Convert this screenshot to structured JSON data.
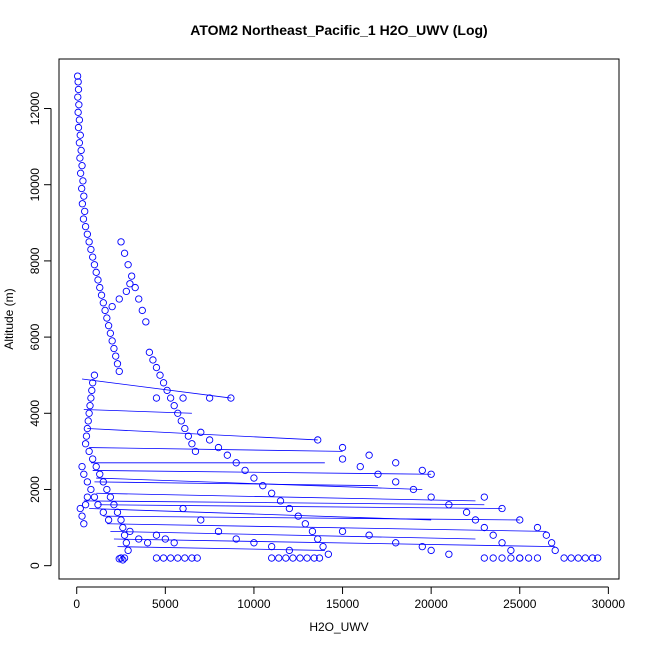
{
  "chart_data": {
    "type": "scatter",
    "title": "ATOM2 Northeast_Pacific_1 H2O_UWV (Log)",
    "xlabel": "H2O_UWV",
    "ylabel": "Altitude (m)",
    "xlim": [
      -1000,
      30600
    ],
    "ylim": [
      -350,
      13300
    ],
    "x_ticks": [
      0,
      5000,
      10000,
      15000,
      20000,
      25000,
      30000
    ],
    "y_ticks": [
      0,
      2000,
      4000,
      6000,
      8000,
      10000,
      12000
    ],
    "grid": false,
    "legend": "none",
    "marker_color": "#0000ff",
    "series": [
      {
        "type": "scatter-points",
        "points": [
          [
            50,
            12850
          ],
          [
            80,
            12700
          ],
          [
            100,
            12500
          ],
          [
            60,
            12300
          ],
          [
            120,
            12100
          ],
          [
            80,
            11900
          ],
          [
            150,
            11700
          ],
          [
            100,
            11500
          ],
          [
            200,
            11300
          ],
          [
            150,
            11100
          ],
          [
            250,
            10900
          ],
          [
            180,
            10700
          ],
          [
            300,
            10500
          ],
          [
            220,
            10300
          ],
          [
            350,
            10100
          ],
          [
            280,
            9900
          ],
          [
            400,
            9700
          ],
          [
            320,
            9500
          ],
          [
            450,
            9300
          ],
          [
            380,
            9100
          ],
          [
            500,
            8900
          ],
          [
            600,
            8700
          ],
          [
            700,
            8500
          ],
          [
            800,
            8300
          ],
          [
            900,
            8100
          ],
          [
            1000,
            7900
          ],
          [
            1100,
            7700
          ],
          [
            1200,
            7500
          ],
          [
            1300,
            7300
          ],
          [
            1400,
            7100
          ],
          [
            1500,
            6900
          ],
          [
            1600,
            6700
          ],
          [
            1700,
            6500
          ],
          [
            1800,
            6300
          ],
          [
            1900,
            6100
          ],
          [
            2000,
            5900
          ],
          [
            2100,
            5700
          ],
          [
            2200,
            5500
          ],
          [
            2300,
            5300
          ],
          [
            2400,
            5100
          ],
          [
            1000,
            5000
          ],
          [
            900,
            4800
          ],
          [
            850,
            4600
          ],
          [
            800,
            4400
          ],
          [
            750,
            4200
          ],
          [
            700,
            4000
          ],
          [
            650,
            3800
          ],
          [
            600,
            3600
          ],
          [
            550,
            3400
          ],
          [
            500,
            3200
          ],
          [
            700,
            3000
          ],
          [
            900,
            2800
          ],
          [
            1100,
            2600
          ],
          [
            1300,
            2400
          ],
          [
            1500,
            2200
          ],
          [
            1700,
            2000
          ],
          [
            1900,
            1800
          ],
          [
            2100,
            1600
          ],
          [
            2300,
            1400
          ],
          [
            2500,
            1200
          ],
          [
            2600,
            1000
          ],
          [
            2700,
            800
          ],
          [
            2800,
            600
          ],
          [
            2900,
            400
          ],
          [
            2500,
            200
          ],
          [
            2600,
            150
          ],
          [
            2400,
            180
          ],
          [
            2700,
            200
          ],
          [
            2500,
            8500
          ],
          [
            2700,
            8200
          ],
          [
            2900,
            7900
          ],
          [
            3100,
            7600
          ],
          [
            3300,
            7300
          ],
          [
            3500,
            7000
          ],
          [
            3700,
            6700
          ],
          [
            3900,
            6400
          ],
          [
            4100,
            5600
          ],
          [
            4300,
            5400
          ],
          [
            4500,
            5200
          ],
          [
            4700,
            5000
          ],
          [
            4900,
            4800
          ],
          [
            5100,
            4600
          ],
          [
            5300,
            4400
          ],
          [
            5500,
            4200
          ],
          [
            5700,
            4000
          ],
          [
            5900,
            3800
          ],
          [
            6100,
            3600
          ],
          [
            6300,
            3400
          ],
          [
            6500,
            3200
          ],
          [
            6700,
            3000
          ],
          [
            7000,
            3500
          ],
          [
            7500,
            3300
          ],
          [
            8000,
            3100
          ],
          [
            8500,
            2900
          ],
          [
            9000,
            2700
          ],
          [
            9500,
            2500
          ],
          [
            10000,
            2300
          ],
          [
            10500,
            2100
          ],
          [
            11000,
            1900
          ],
          [
            11500,
            1700
          ],
          [
            12000,
            1500
          ],
          [
            12500,
            1300
          ],
          [
            12900,
            1100
          ],
          [
            13300,
            900
          ],
          [
            13600,
            700
          ],
          [
            13900,
            500
          ],
          [
            14200,
            300
          ],
          [
            6000,
            1500
          ],
          [
            7000,
            1200
          ],
          [
            8000,
            900
          ],
          [
            9000,
            700
          ],
          [
            10000,
            600
          ],
          [
            11000,
            500
          ],
          [
            12000,
            400
          ],
          [
            15000,
            2800
          ],
          [
            16000,
            2600
          ],
          [
            17000,
            2400
          ],
          [
            18000,
            2200
          ],
          [
            19000,
            2000
          ],
          [
            20000,
            1800
          ],
          [
            21000,
            1600
          ],
          [
            22000,
            1400
          ],
          [
            22500,
            1200
          ],
          [
            23000,
            1000
          ],
          [
            23500,
            800
          ],
          [
            24000,
            600
          ],
          [
            24500,
            400
          ],
          [
            25000,
            200
          ],
          [
            23000,
            1800
          ],
          [
            24000,
            1500
          ],
          [
            25000,
            1200
          ],
          [
            26000,
            1000
          ],
          [
            26500,
            800
          ],
          [
            26800,
            600
          ],
          [
            27000,
            400
          ],
          [
            4500,
            4400
          ],
          [
            6000,
            4400
          ],
          [
            7500,
            4400
          ],
          [
            8700,
            4400
          ],
          [
            13600,
            3300
          ],
          [
            15000,
            3100
          ],
          [
            16500,
            2900
          ],
          [
            18000,
            2700
          ],
          [
            19500,
            2500
          ],
          [
            20000,
            2400
          ],
          [
            2000,
            6800
          ],
          [
            2400,
            7000
          ],
          [
            2800,
            7200
          ],
          [
            3000,
            7400
          ],
          [
            4500,
            200
          ],
          [
            4900,
            200
          ],
          [
            5300,
            200
          ],
          [
            5700,
            200
          ],
          [
            6100,
            200
          ],
          [
            6500,
            200
          ],
          [
            6800,
            200
          ],
          [
            11000,
            200
          ],
          [
            11400,
            200
          ],
          [
            11800,
            200
          ],
          [
            12200,
            200
          ],
          [
            12600,
            200
          ],
          [
            13000,
            200
          ],
          [
            13400,
            200
          ],
          [
            13700,
            200
          ],
          [
            23000,
            200
          ],
          [
            23500,
            200
          ],
          [
            24000,
            200
          ],
          [
            24500,
            200
          ],
          [
            25000,
            200
          ],
          [
            25500,
            200
          ],
          [
            26000,
            200
          ],
          [
            27500,
            200
          ],
          [
            27900,
            200
          ],
          [
            28300,
            200
          ],
          [
            28700,
            200
          ],
          [
            29100,
            200
          ],
          [
            29400,
            200
          ],
          [
            15000,
            900
          ],
          [
            16500,
            800
          ],
          [
            18000,
            600
          ],
          [
            19500,
            500
          ],
          [
            20000,
            400
          ],
          [
            21000,
            300
          ],
          [
            3000,
            900
          ],
          [
            3500,
            700
          ],
          [
            4000,
            600
          ],
          [
            4500,
            800
          ],
          [
            5000,
            700
          ],
          [
            5500,
            600
          ],
          [
            300,
            2600
          ],
          [
            400,
            2400
          ],
          [
            600,
            2200
          ],
          [
            800,
            2000
          ],
          [
            1000,
            1800
          ],
          [
            1200,
            1600
          ],
          [
            1500,
            1400
          ],
          [
            1800,
            1200
          ],
          [
            200,
            1500
          ],
          [
            300,
            1300
          ],
          [
            400,
            1100
          ],
          [
            500,
            1600
          ],
          [
            600,
            1800
          ]
        ]
      },
      {
        "type": "connecting-segments",
        "segments": [
          [
            [
              300,
              4900
            ],
            [
              8700,
              4400
            ]
          ],
          [
            [
              400,
              4100
            ],
            [
              6500,
              4000
            ]
          ],
          [
            [
              600,
              3600
            ],
            [
              13600,
              3300
            ]
          ],
          [
            [
              700,
              3100
            ],
            [
              15000,
              3000
            ]
          ],
          [
            [
              800,
              2700
            ],
            [
              14000,
              2700
            ]
          ],
          [
            [
              900,
              2500
            ],
            [
              20000,
              2400
            ]
          ],
          [
            [
              1000,
              2200
            ],
            [
              17000,
              2100
            ]
          ],
          [
            [
              1100,
              1900
            ],
            [
              22500,
              1700
            ]
          ],
          [
            [
              1300,
              1600
            ],
            [
              24000,
              1500
            ]
          ],
          [
            [
              1500,
              1300
            ],
            [
              25000,
              1200
            ]
          ],
          [
            [
              1700,
              1100
            ],
            [
              26500,
              900
            ]
          ],
          [
            [
              1900,
              900
            ],
            [
              22500,
              700
            ]
          ],
          [
            [
              2100,
              700
            ],
            [
              27000,
              500
            ]
          ],
          [
            [
              400,
              1700
            ],
            [
              23000,
              1600
            ]
          ],
          [
            [
              700,
              1500
            ],
            [
              20000,
              1200
            ]
          ],
          [
            [
              2300,
              500
            ],
            [
              14000,
              400
            ]
          ],
          [
            [
              1100,
              2300
            ],
            [
              19500,
              2000
            ]
          ]
        ]
      }
    ]
  }
}
